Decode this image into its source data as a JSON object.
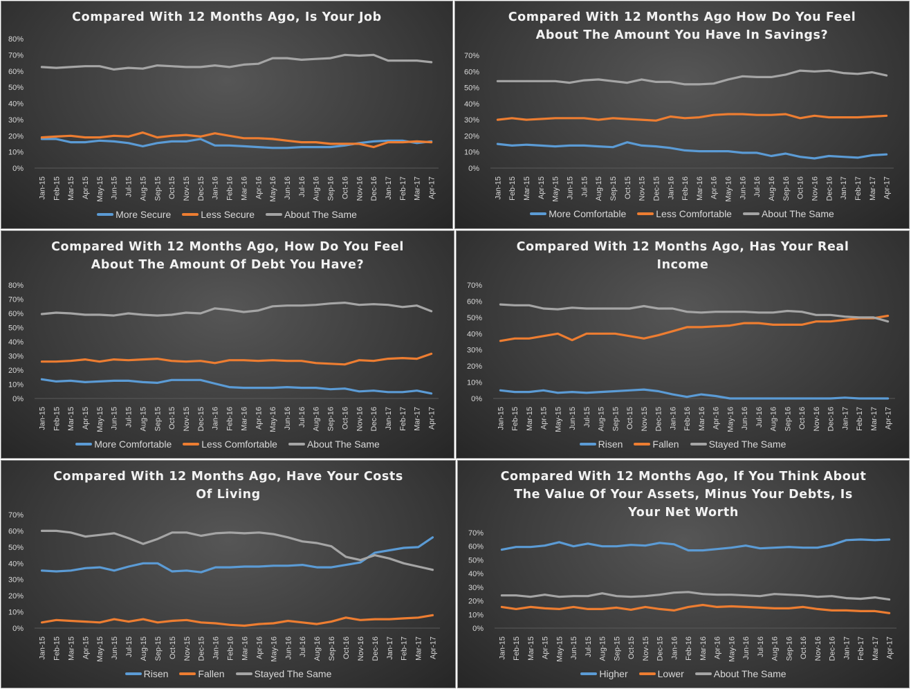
{
  "months": [
    "Jan-15",
    "Feb-15",
    "Mar-15",
    "Apr-15",
    "May-15",
    "Jun-15",
    "Jul-15",
    "Aug-15",
    "Sep-15",
    "Oct-15",
    "Nov-15",
    "Dec-15",
    "Jan-16",
    "Feb-16",
    "Mar-16",
    "Apr-16",
    "May-16",
    "Jun-16",
    "Jul-16",
    "Aug-16",
    "Sep-16",
    "Oct-16",
    "Nov-16",
    "Dec-16",
    "Jan-17",
    "Feb-17",
    "Mar-17",
    "Apr-17"
  ],
  "colors": {
    "blue": "#5b9bd5",
    "orange": "#ed7d31",
    "gray": "#a5a5a5"
  },
  "chart_data": [
    {
      "type": "line",
      "title": "Compared With 12 Months Ago, Is Your Job",
      "ylim": [
        0,
        80
      ],
      "ytick_step": 10,
      "y_unit": "%",
      "grid": false,
      "legend": "bottom",
      "series": [
        {
          "name": "More Secure",
          "color": "blue",
          "values": [
            18,
            18,
            16,
            16,
            17,
            16.5,
            15.5,
            13.5,
            15.5,
            16.5,
            16.5,
            18,
            14,
            14,
            13.5,
            13,
            12.5,
            12.5,
            13,
            13,
            13,
            14,
            15.5,
            16.5,
            17,
            17,
            15.5,
            16.5
          ]
        },
        {
          "name": "Less Secure",
          "color": "orange",
          "values": [
            19,
            19.5,
            20,
            19,
            19,
            20,
            19.5,
            22,
            19,
            20,
            20.5,
            19.5,
            21.5,
            20,
            18.5,
            18.5,
            18,
            17,
            16,
            16,
            15,
            15,
            15,
            13,
            16,
            16,
            16.5,
            16
          ]
        },
        {
          "name": "About The Same",
          "color": "gray",
          "values": [
            62.5,
            62,
            62.5,
            63,
            63,
            61,
            62,
            61.5,
            63.5,
            63,
            62.5,
            62.5,
            63.5,
            62.5,
            64,
            64.5,
            68,
            68,
            67,
            67.5,
            68,
            70,
            69.5,
            70,
            66.5,
            66.5,
            66.5,
            65.5
          ]
        }
      ]
    },
    {
      "type": "line",
      "title": "Compared With 12 Months Ago How Do You Feel\nAbout The Amount You Have In Savings?",
      "ylim": [
        0,
        70
      ],
      "ytick_step": 10,
      "y_unit": "%",
      "grid": false,
      "legend": "bottom",
      "series": [
        {
          "name": "More Comfortable",
          "color": "blue",
          "values": [
            15,
            14,
            14.5,
            14,
            13.5,
            14,
            14,
            13.5,
            13,
            16,
            14,
            13.5,
            12.5,
            11,
            10.5,
            10.5,
            10.5,
            9.5,
            9.5,
            7.5,
            9,
            7,
            6,
            7.5,
            7,
            6.5,
            8,
            8.5
          ]
        },
        {
          "name": "Less Comfortable",
          "color": "orange",
          "values": [
            30,
            31,
            30,
            30.5,
            31,
            31,
            31,
            30,
            31,
            30.5,
            30,
            29.5,
            32,
            31,
            31.5,
            33,
            33.5,
            33.5,
            33,
            33,
            33.5,
            31,
            32.5,
            31.5,
            31.5,
            31.5,
            32,
            32.5
          ]
        },
        {
          "name": "About The Same",
          "color": "gray",
          "values": [
            54,
            54,
            54,
            54,
            54,
            53,
            54.5,
            55,
            54,
            53,
            55,
            53.5,
            53.5,
            52,
            52,
            52.5,
            55,
            57,
            56.5,
            56.5,
            58,
            60.5,
            60,
            60.5,
            59,
            58.5,
            59.5,
            57.5
          ]
        }
      ]
    },
    {
      "type": "line",
      "title": "Compared With 12 Months Ago, How Do You Feel\nAbout The Amount Of Debt You Have?",
      "ylim": [
        0,
        80
      ],
      "ytick_step": 10,
      "y_unit": "%",
      "grid": false,
      "legend": "bottom",
      "series": [
        {
          "name": "More Comfortable",
          "color": "blue",
          "values": [
            13.5,
            12,
            12.5,
            11.5,
            12,
            12.5,
            12.5,
            11.5,
            11,
            13,
            13,
            13,
            10.5,
            8,
            7.5,
            7.5,
            7.5,
            8,
            7.5,
            7.5,
            6.5,
            7,
            5,
            5.5,
            4.5,
            4.5,
            5.5,
            3.5
          ]
        },
        {
          "name": "Less Comfortable",
          "color": "orange",
          "values": [
            26,
            26,
            26.5,
            27.5,
            26,
            27.5,
            27,
            27.5,
            28,
            26.5,
            26,
            26.5,
            25,
            27,
            27,
            26.5,
            27,
            26.5,
            26.5,
            25,
            24.5,
            24,
            27,
            26.5,
            28,
            28.5,
            28,
            31.5
          ]
        },
        {
          "name": "About The Same",
          "color": "gray",
          "values": [
            59.5,
            60.5,
            60,
            59,
            59,
            58.5,
            60,
            59,
            58.5,
            59,
            60.5,
            60,
            63.5,
            62.5,
            61,
            62,
            65,
            65.5,
            65.5,
            66,
            67,
            67.5,
            66,
            66.5,
            66,
            64.5,
            65.5,
            61.5
          ]
        }
      ]
    },
    {
      "type": "line",
      "title": "Compared With 12 Months Ago, Has Your Real\nIncome",
      "ylim": [
        0,
        70
      ],
      "ytick_step": 10,
      "y_unit": "%",
      "grid": false,
      "legend": "bottom",
      "series": [
        {
          "name": "Risen",
          "color": "blue",
          "values": [
            5,
            4,
            4,
            5,
            3.5,
            4,
            3.5,
            4,
            4.5,
            5,
            5.5,
            4.5,
            2.5,
            1,
            2.5,
            1.5,
            0,
            0,
            0,
            0,
            0,
            0,
            0,
            0,
            0.5,
            0,
            0,
            0
          ]
        },
        {
          "name": "Fallen",
          "color": "orange",
          "values": [
            35.5,
            37,
            37,
            38.5,
            40,
            36,
            40,
            40,
            40,
            38.5,
            37,
            39,
            41.5,
            44,
            44,
            44.5,
            45,
            46.5,
            46.5,
            45.5,
            45.5,
            45.5,
            47.5,
            47.5,
            48.5,
            49.5,
            49.5,
            51
          ]
        },
        {
          "name": "Stayed The Same",
          "color": "gray",
          "values": [
            58,
            57.5,
            57.5,
            55.5,
            55,
            56,
            55.5,
            55.5,
            55.5,
            55.5,
            57,
            55.5,
            55.5,
            53.5,
            53,
            53.5,
            53.5,
            53.5,
            53,
            53,
            54,
            53.5,
            51.5,
            51.5,
            50.5,
            50,
            50,
            47.5
          ]
        }
      ]
    },
    {
      "type": "line",
      "title": "Compared With 12 Months Ago, Have Your Costs\nOf Living",
      "ylim": [
        0,
        70
      ],
      "ytick_step": 10,
      "y_unit": "%",
      "grid": false,
      "legend": "bottom",
      "series": [
        {
          "name": "Risen",
          "color": "blue",
          "values": [
            35.5,
            35,
            35.5,
            37,
            37.5,
            35.5,
            38,
            40,
            40,
            35,
            35.5,
            34.5,
            37.5,
            37.5,
            38,
            38,
            38.5,
            38.5,
            39,
            37.5,
            37.5,
            39,
            40.5,
            46.5,
            48,
            49.5,
            50,
            56
          ]
        },
        {
          "name": "Fallen",
          "color": "orange",
          "values": [
            3.5,
            5,
            4.5,
            4,
            3.5,
            5.5,
            4,
            5.5,
            3.5,
            4.5,
            5,
            3.5,
            3,
            2,
            1.5,
            2.5,
            3,
            4.5,
            3.5,
            2.5,
            4,
            6.5,
            5,
            5.5,
            5.5,
            6,
            6.5,
            8
          ]
        },
        {
          "name": "Stayed The Same",
          "color": "gray",
          "values": [
            60,
            60,
            59,
            56.5,
            57.5,
            58.5,
            55.5,
            52,
            55,
            59,
            59,
            57,
            58.5,
            59,
            58.5,
            59,
            58,
            56,
            53.5,
            52.5,
            50.5,
            44,
            42,
            45,
            43,
            40,
            38,
            36
          ]
        }
      ]
    },
    {
      "type": "line",
      "title": "Compared With 12 Months Ago, If You Think About\nThe Value Of Your Assets, Minus Your Debts, Is\nYour Net Worth",
      "ylim": [
        0,
        70
      ],
      "ytick_step": 10,
      "y_unit": "%",
      "grid": false,
      "legend": "bottom",
      "series": [
        {
          "name": "Higher",
          "color": "blue",
          "values": [
            57.5,
            59.5,
            59.5,
            60.5,
            63,
            60,
            62,
            60,
            60,
            61,
            60.5,
            62.5,
            61.5,
            57,
            57,
            58,
            59,
            60.5,
            58.5,
            59,
            59.5,
            59,
            59,
            61,
            64.5,
            65,
            64.5,
            65
          ]
        },
        {
          "name": "Lower",
          "color": "orange",
          "values": [
            15.5,
            14,
            15.5,
            14.5,
            14,
            15.5,
            14,
            14,
            15,
            13.5,
            15.5,
            14,
            13,
            15.5,
            17,
            15.5,
            16,
            15.5,
            15,
            14.5,
            14.5,
            15.5,
            14,
            13,
            13,
            12.5,
            12.5,
            11
          ]
        },
        {
          "name": "About The Same",
          "color": "gray",
          "values": [
            24,
            24,
            23,
            24.5,
            23,
            23.5,
            23.5,
            25.5,
            23.5,
            23,
            23.5,
            24.5,
            26,
            26.5,
            25,
            24.5,
            24.5,
            24,
            23.5,
            25,
            24.5,
            24,
            23,
            23.5,
            22,
            21.5,
            22.5,
            21
          ]
        }
      ]
    }
  ]
}
